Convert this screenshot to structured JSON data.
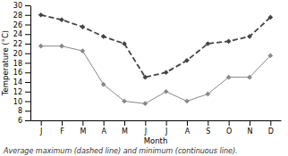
{
  "chart_data": {
    "type": "line",
    "xlabel": "Month",
    "ylabel": "Temperature (°C)",
    "caption": "Average maximum (dashed line) and minimum (continuous line).",
    "categories": [
      "J",
      "F",
      "M",
      "A",
      "M",
      "J",
      "J",
      "A",
      "S",
      "O",
      "N",
      "D"
    ],
    "series": [
      {
        "color": "#444444",
        "line_style": "dashed",
        "marker": "diamond",
        "values": [
          28,
          27,
          25.5,
          23.5,
          22,
          15,
          16,
          18.5,
          22,
          22.5,
          23.5,
          27.5
        ]
      },
      {
        "color": "#888888",
        "line_style": "solid",
        "marker": "diamond",
        "values": [
          21.5,
          21.5,
          20.5,
          13.5,
          10,
          9.5,
          12,
          10,
          11.5,
          15,
          15,
          19.5
        ]
      }
    ],
    "ylim": [
      6,
      30
    ],
    "yticks": [
      6,
      8,
      10,
      12,
      14,
      16,
      18,
      20,
      22,
      24,
      26,
      28,
      30
    ],
    "grid": false
  }
}
